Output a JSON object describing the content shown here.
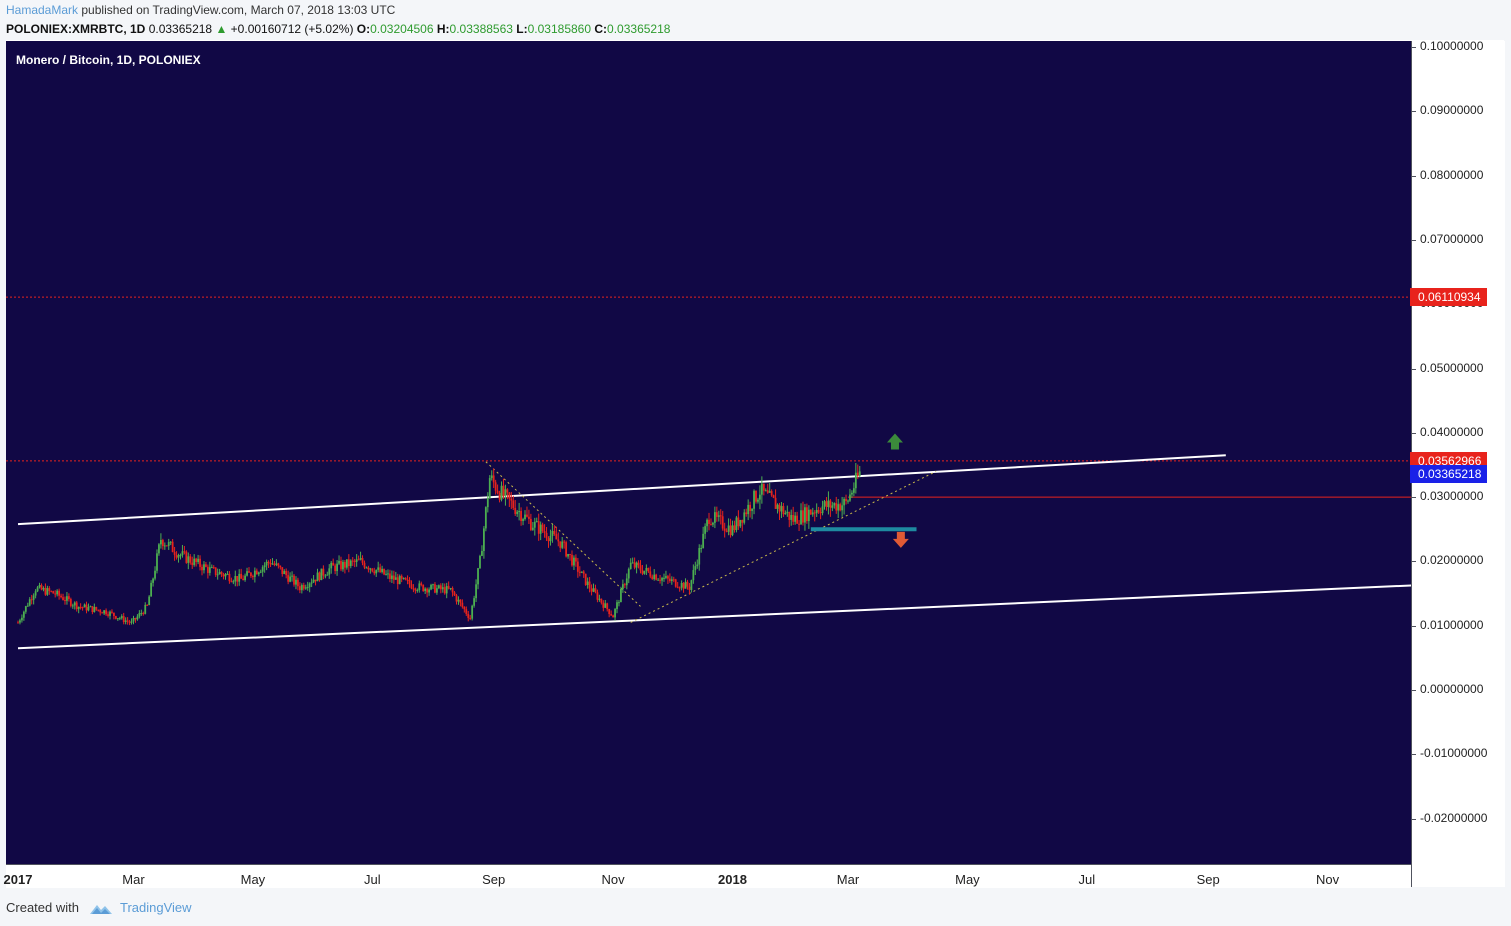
{
  "header": {
    "author": "HamadaMark",
    "published_text": "published on TradingView.com, March 07, 2018 13:03 UTC",
    "symbol": "POLONIEX:XMRBTC, 1D",
    "last": "0.03365218",
    "change_arrow": "▲",
    "change": "+0.00160712 (+5.02%)",
    "o_label": "O:",
    "o_value": "0.03204506",
    "h_label": "H:",
    "h_value": "0.03388563",
    "l_label": "L:",
    "l_value": "0.03185860",
    "c_label": "C:",
    "c_value": "0.03365218"
  },
  "pane_title": "Monero / Bitcoin, 1D, POLONIEX",
  "price_tags": {
    "upper_level": "0.06110934",
    "resistance": "0.03562966",
    "last_price": "0.03365218"
  },
  "footer": {
    "created_with": "Created with",
    "brand": "TradingView"
  },
  "colors": {
    "background": "#110845",
    "up_candle": "#4caf50",
    "down_candle": "#e8231c",
    "channel_line": "#ffffff",
    "level_line": "#e8231c",
    "support_box": "#1e8aa0",
    "trend_dotted": "#c8b84a"
  },
  "chart_data": {
    "type": "candlestick",
    "title": "Monero / Bitcoin, 1D, POLONIEX",
    "y_ticks": [
      "0.10000000",
      "0.09000000",
      "0.08000000",
      "0.07000000",
      "0.06000000",
      "0.05000000",
      "0.04000000",
      "0.03000000",
      "0.02000000",
      "0.01000000",
      "0.00000000",
      "-0.01000000",
      "-0.02000000"
    ],
    "x_ticks": [
      {
        "label": "2017",
        "bold": true
      },
      {
        "label": "Mar",
        "bold": false
      },
      {
        "label": "May",
        "bold": false
      },
      {
        "label": "Jul",
        "bold": false
      },
      {
        "label": "Sep",
        "bold": false
      },
      {
        "label": "Nov",
        "bold": false
      },
      {
        "label": "2018",
        "bold": true
      },
      {
        "label": "Mar",
        "bold": false
      },
      {
        "label": "May",
        "bold": false
      },
      {
        "label": "Jul",
        "bold": false
      },
      {
        "label": "Sep",
        "bold": false
      },
      {
        "label": "Nov",
        "bold": false
      }
    ],
    "ylim": [
      -0.027,
      0.1
    ],
    "x_range_dates": [
      "2017-01-01",
      "2018-12-31"
    ],
    "price_path": [
      [
        "2017-01-01",
        0.0105
      ],
      [
        "2017-01-10",
        0.0158
      ],
      [
        "2017-01-20",
        0.015
      ],
      [
        "2017-02-01",
        0.013
      ],
      [
        "2017-02-15",
        0.0122
      ],
      [
        "2017-02-28",
        0.0104
      ],
      [
        "2017-03-08",
        0.013
      ],
      [
        "2017-03-15",
        0.0235
      ],
      [
        "2017-03-25",
        0.021
      ],
      [
        "2017-04-10",
        0.0185
      ],
      [
        "2017-04-25",
        0.0172
      ],
      [
        "2017-05-10",
        0.02
      ],
      [
        "2017-05-25",
        0.016
      ],
      [
        "2017-06-10",
        0.019
      ],
      [
        "2017-06-25",
        0.02
      ],
      [
        "2017-07-10",
        0.0175
      ],
      [
        "2017-07-25",
        0.016
      ],
      [
        "2017-08-10",
        0.0155
      ],
      [
        "2017-08-20",
        0.0112
      ],
      [
        "2017-08-25",
        0.02
      ],
      [
        "2017-08-30",
        0.033
      ],
      [
        "2017-09-05",
        0.0305
      ],
      [
        "2017-09-20",
        0.026
      ],
      [
        "2017-10-05",
        0.023
      ],
      [
        "2017-10-20",
        0.016
      ],
      [
        "2017-11-01",
        0.0115
      ],
      [
        "2017-11-10",
        0.0195
      ],
      [
        "2017-11-25",
        0.0175
      ],
      [
        "2017-12-10",
        0.016
      ],
      [
        "2017-12-20",
        0.027
      ],
      [
        "2018-01-01",
        0.025
      ],
      [
        "2018-01-15",
        0.031
      ],
      [
        "2018-02-01",
        0.0265
      ],
      [
        "2018-02-15",
        0.0285
      ],
      [
        "2018-02-28",
        0.029
      ],
      [
        "2018-03-07",
        0.0337
      ]
    ],
    "annotations": [
      {
        "kind": "horizontal_line",
        "price": 0.06110934,
        "style": "dotted",
        "color": "#e8231c"
      },
      {
        "kind": "horizontal_line",
        "price": 0.03562966,
        "style": "dotted",
        "color": "#e8231c"
      },
      {
        "kind": "horizontal_ray",
        "price": 0.03,
        "from": "2018-03-01",
        "style": "solid",
        "color": "#e8231c"
      },
      {
        "kind": "trend_line",
        "from": [
          "2017-01-01",
          0.0258
        ],
        "to": [
          "2018-09-10",
          0.0365
        ],
        "color": "#ffffff"
      },
      {
        "kind": "trend_line",
        "from": [
          "2017-01-01",
          0.0065
        ],
        "to": [
          "2018-12-31",
          0.0165
        ],
        "color": "#ffffff"
      },
      {
        "kind": "trend_line",
        "from": [
          "2017-08-28",
          0.0355
        ],
        "to": [
          "2017-11-15",
          0.013
        ],
        "style": "dotted",
        "color": "#c8b84a"
      },
      {
        "kind": "trend_line",
        "from": [
          "2017-11-10",
          0.0105
        ],
        "to": [
          "2018-04-15",
          0.034
        ],
        "style": "dotted",
        "color": "#c8b84a"
      },
      {
        "kind": "support_zone",
        "from": "2018-02-10",
        "to": "2018-04-05",
        "price": 0.025,
        "color": "#1e8aa0"
      },
      {
        "kind": "arrow_up",
        "date": "2018-03-25",
        "price": 0.0385,
        "color": "#3b8a3b"
      },
      {
        "kind": "arrow_down",
        "date": "2018-03-28",
        "price": 0.0235,
        "color": "#e05a35"
      }
    ]
  }
}
